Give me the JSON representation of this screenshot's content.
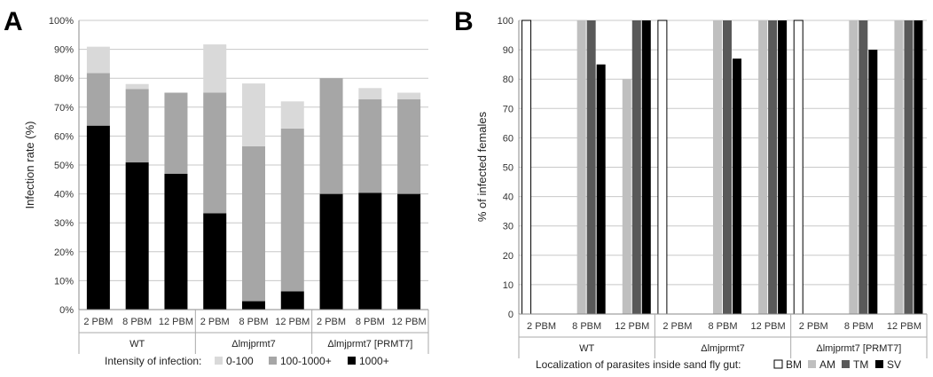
{
  "chart_data": [
    {
      "panel": "A",
      "type": "bar",
      "stacked": true,
      "ylabel": "Infection rate (%)",
      "ylim": [
        0,
        100
      ],
      "ytick_labels": [
        "0%",
        "10%",
        "20%",
        "30%",
        "40%",
        "50%",
        "60%",
        "70%",
        "80%",
        "90%",
        "100%"
      ],
      "categories": [
        "2 PBM",
        "8 PBM",
        "12 PBM",
        "2 PBM",
        "8 PBM",
        "12 PBM",
        "2 PBM",
        "8 PBM",
        "12 PBM"
      ],
      "groups": [
        "WT",
        "Δlmjprmt7",
        "Δlmjprmt7 [PRMT7]"
      ],
      "legend_title": "Intensity of infection:",
      "legend_position": "bottom",
      "grid": true,
      "series": [
        {
          "name": "1000+",
          "color": "#000000",
          "values": [
            63.6,
            50.9,
            47,
            33.3,
            2.9,
            6.3,
            40,
            40.4,
            40
          ]
        },
        {
          "name": "100-1000+",
          "color": "#a6a6a6",
          "values": [
            18.2,
            25.4,
            28,
            41.7,
            53.6,
            56.3,
            40,
            32.3,
            32.7
          ]
        },
        {
          "name": "0-100",
          "color": "#d9d9d9",
          "values": [
            9.1,
            1.7,
            0,
            16.7,
            21.7,
            9.4,
            0,
            3.9,
            2.3
          ]
        }
      ]
    },
    {
      "panel": "B",
      "type": "bar",
      "ylabel": "% of infected females",
      "ylim": [
        0,
        100
      ],
      "ytick_labels": [
        "0",
        "10",
        "20",
        "30",
        "40",
        "50",
        "60",
        "70",
        "80",
        "90",
        "100"
      ],
      "categories": [
        "2 PBM",
        "8 PBM",
        "12 PBM",
        "2 PBM",
        "8 PBM",
        "12 PBM",
        "2 PBM",
        "8 PBM",
        "12 PBM"
      ],
      "groups": [
        "WT",
        "Δlmjprmt7",
        "Δlmjprmt7 [PRMT7]"
      ],
      "legend_title": "Localization of parasites inside sand fly gut:",
      "legend_position": "bottom",
      "grid": true,
      "series": [
        {
          "name": "BM",
          "color": "#ffffff",
          "values": [
            100,
            0,
            0,
            100,
            0,
            0,
            100,
            0,
            0
          ]
        },
        {
          "name": "AM",
          "color": "#bfbfbf",
          "values": [
            0,
            100,
            80,
            0,
            100,
            100,
            0,
            100,
            100
          ]
        },
        {
          "name": "TM",
          "color": "#595959",
          "values": [
            0,
            100,
            100,
            0,
            100,
            100,
            0,
            100,
            100
          ]
        },
        {
          "name": "SV",
          "color": "#000000",
          "values": [
            0,
            85,
            100,
            0,
            87,
            100,
            0,
            90,
            100
          ]
        }
      ]
    }
  ]
}
